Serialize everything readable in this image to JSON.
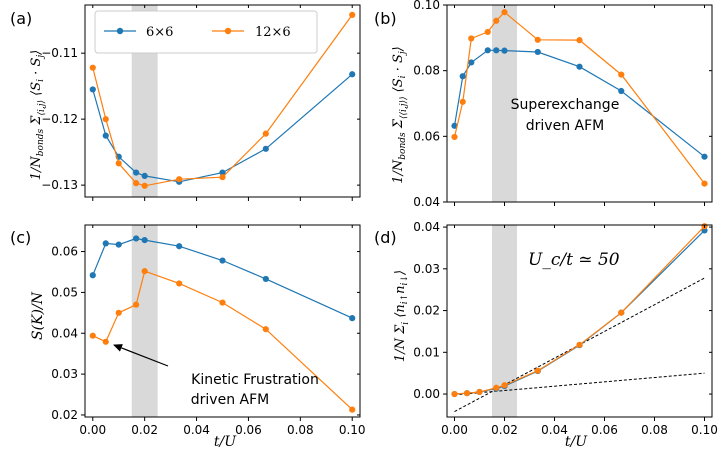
{
  "chart_data": [
    {
      "panel": "(a)",
      "type": "line",
      "ylabel": "1/N_bonds Σ_⟨i,j⟩ ⟨S_i · S_j⟩",
      "xlabel": "",
      "xlim": [
        -0.003,
        0.103
      ],
      "ylim": [
        -0.1318,
        -0.1027
      ],
      "xticks": [
        0.0,
        0.02,
        0.04,
        0.06,
        0.08,
        0.1
      ],
      "xtick_labels": [
        "",
        "",
        "",
        "",
        "",
        ""
      ],
      "yticks": [
        -0.13,
        -0.12,
        -0.11
      ],
      "ytick_labels": [
        "−0.13",
        "−0.12",
        "−0.11"
      ],
      "shade": [
        0.015,
        0.025
      ],
      "legend": {
        "position": "top-left",
        "labels": [
          "6×6",
          "12×6"
        ]
      },
      "series": [
        {
          "name": "6×6",
          "color": "#1f77b4",
          "x": [
            0.0,
            0.005,
            0.01,
            0.0167,
            0.02,
            0.0333,
            0.05,
            0.0667,
            0.1
          ],
          "y": [
            -0.1155,
            -0.1225,
            -0.1257,
            -0.1281,
            -0.1286,
            -0.1295,
            -0.1281,
            -0.1245,
            -0.1132
          ]
        },
        {
          "name": "12×6",
          "color": "#ff7f0e",
          "x": [
            0.0,
            0.005,
            0.01,
            0.0167,
            0.02,
            0.0333,
            0.05,
            0.0667,
            0.1
          ],
          "y": [
            -0.1122,
            -0.12,
            -0.1267,
            -0.1297,
            -0.1301,
            -0.1291,
            -0.1288,
            -0.1222,
            -0.1042
          ]
        }
      ]
    },
    {
      "panel": "(b)",
      "type": "line",
      "ylabel": "1/N_bonds Σ_⟨⟨i,j⟩⟩ ⟨S_i · S_j⟩",
      "xlabel": "",
      "xlim": [
        -0.003,
        0.103
      ],
      "ylim": [
        0.04,
        0.1
      ],
      "xticks": [
        0.0,
        0.02,
        0.04,
        0.06,
        0.08,
        0.1
      ],
      "xtick_labels": [
        "",
        "",
        "",
        "",
        "",
        ""
      ],
      "yticks": [
        0.04,
        0.06,
        0.08,
        0.1
      ],
      "ytick_labels": [
        "0.04",
        "0.06",
        "0.08",
        "0.10"
      ],
      "shade": [
        0.015,
        0.025
      ],
      "annotations": [
        "Superexchange",
        "driven AFM"
      ],
      "series": [
        {
          "name": "6×6",
          "color": "#1f77b4",
          "x": [
            0.0,
            0.0033,
            0.0067,
            0.0133,
            0.0167,
            0.02,
            0.0333,
            0.05,
            0.0667,
            0.1
          ],
          "y": [
            0.0632,
            0.0783,
            0.0825,
            0.0862,
            0.0862,
            0.0861,
            0.0857,
            0.0812,
            0.0738,
            0.0538
          ]
        },
        {
          "name": "12×6",
          "color": "#ff7f0e",
          "x": [
            0.0,
            0.0033,
            0.0067,
            0.0133,
            0.0167,
            0.02,
            0.0333,
            0.05,
            0.0667,
            0.1
          ],
          "y": [
            0.0598,
            0.0705,
            0.0898,
            0.0918,
            0.0952,
            0.0978,
            0.0894,
            0.0893,
            0.0788,
            0.0456
          ]
        }
      ]
    },
    {
      "panel": "(c)",
      "type": "line",
      "ylabel": "S(K)/N",
      "xlabel": "t/U",
      "xlim": [
        -0.003,
        0.103
      ],
      "ylim": [
        0.0195,
        0.0665
      ],
      "xticks": [
        0.0,
        0.02,
        0.04,
        0.06,
        0.08,
        0.1
      ],
      "xtick_labels": [
        "0.00",
        "0.02",
        "0.04",
        "0.06",
        "0.08",
        "0.10"
      ],
      "yticks": [
        0.02,
        0.03,
        0.04,
        0.05,
        0.06
      ],
      "ytick_labels": [
        "0.02",
        "0.03",
        "0.04",
        "0.05",
        "0.06"
      ],
      "shade": [
        0.015,
        0.025
      ],
      "annotations": [
        "Kinetic Frustration",
        "driven AFM"
      ],
      "series": [
        {
          "name": "6×6",
          "color": "#1f77b4",
          "x": [
            0.0,
            0.005,
            0.01,
            0.0167,
            0.02,
            0.0333,
            0.05,
            0.0667,
            0.1
          ],
          "y": [
            0.0542,
            0.062,
            0.0617,
            0.0632,
            0.0628,
            0.0613,
            0.0578,
            0.0533,
            0.0437
          ]
        },
        {
          "name": "12×6",
          "color": "#ff7f0e",
          "x": [
            0.0,
            0.005,
            0.01,
            0.0167,
            0.02,
            0.0333,
            0.05,
            0.0667,
            0.1
          ],
          "y": [
            0.0394,
            0.0379,
            0.045,
            0.047,
            0.0552,
            0.0522,
            0.0475,
            0.041,
            0.0213
          ]
        }
      ]
    },
    {
      "panel": "(d)",
      "type": "line",
      "ylabel": "1/N Σ_i ⟨n_i↑ n_i↓⟩",
      "xlabel": "t/U",
      "xlim": [
        -0.003,
        0.103
      ],
      "ylim": [
        -0.0055,
        0.0405
      ],
      "xticks": [
        0.0,
        0.02,
        0.04,
        0.06,
        0.08,
        0.1
      ],
      "xtick_labels": [
        "0.00",
        "0.02",
        "0.04",
        "0.06",
        "0.08",
        "0.10"
      ],
      "yticks": [
        0.0,
        0.01,
        0.02,
        0.03,
        0.04
      ],
      "ytick_labels": [
        "0.00",
        "0.01",
        "0.02",
        "0.03",
        "0.04"
      ],
      "shade": [
        0.015,
        0.025
      ],
      "annotations": [
        "U_c/t ≃ 50"
      ],
      "fit_lines": [
        {
          "x": [
            0.0,
            0.1
          ],
          "y": [
            -0.0042,
            0.0278
          ]
        },
        {
          "x": [
            0.0,
            0.1
          ],
          "y": [
            -0.0002,
            0.005
          ]
        }
      ],
      "series": [
        {
          "name": "6×6",
          "color": "#1f77b4",
          "x": [
            0.0,
            0.005,
            0.01,
            0.0167,
            0.02,
            0.0333,
            0.05,
            0.0667,
            0.1
          ],
          "y": [
            0.0,
            0.0002,
            0.0005,
            0.0013,
            0.0019,
            0.0055,
            0.0117,
            0.0195,
            0.0392
          ]
        },
        {
          "name": "12×6",
          "color": "#ff7f0e",
          "x": [
            0.0,
            0.005,
            0.01,
            0.0167,
            0.02,
            0.0333,
            0.05,
            0.0667,
            0.1
          ],
          "y": [
            0.0,
            0.0002,
            0.0005,
            0.0015,
            0.0021,
            0.0056,
            0.0118,
            0.0195,
            0.0402
          ]
        }
      ]
    }
  ],
  "panel_labels": [
    "(a)",
    "(b)",
    "(c)",
    "(d)"
  ],
  "xlabel_text": "t/U",
  "ylabel_c_text": "S(K)/N",
  "legend": {
    "label_6": "6×6",
    "label_12": "12×6"
  },
  "annotations": {
    "b_line1": "Superexchange",
    "b_line2": "driven AFM",
    "c_line1": "Kinetic Frustration",
    "c_line2": "driven AFM",
    "d_text": "U_c/t ≃ 50"
  },
  "colors": {
    "blue": "#1f77b4",
    "orange": "#ff7f0e",
    "shade": "#d9d9d9"
  }
}
